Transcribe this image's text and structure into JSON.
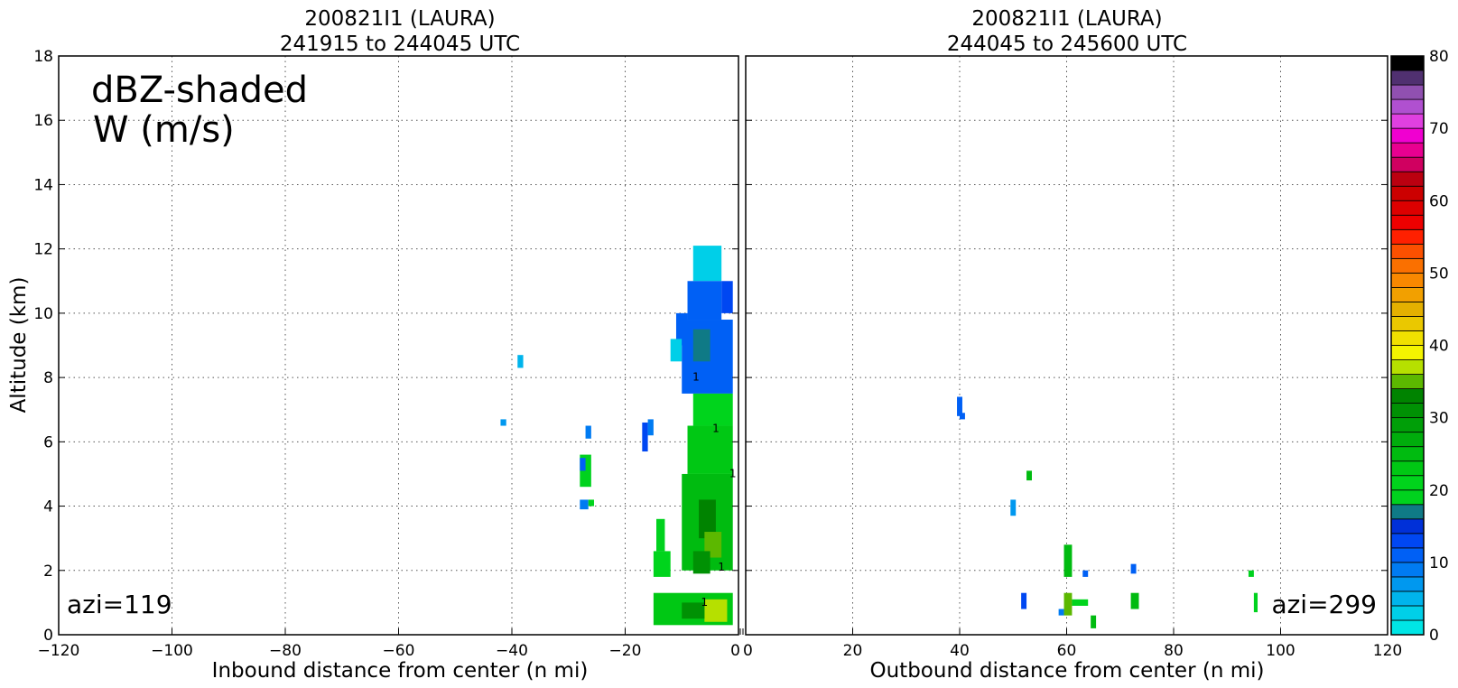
{
  "chart_data": [
    {
      "type": "heatmap",
      "panel": "left",
      "title_line1": "200821I1 (LAURA)",
      "title_line2": "241915 to 244045 UTC",
      "xlabel": "Inbound distance from center (n mi)",
      "ylabel": "Altitude (km)",
      "xlim": [
        -120,
        0
      ],
      "ylim": [
        0,
        18
      ],
      "xticks": [
        "−120",
        "−100",
        "−80",
        "−60",
        "−40",
        "−20",
        "0"
      ],
      "yticks": [
        "0",
        "2",
        "4",
        "6",
        "8",
        "10",
        "12",
        "14",
        "16",
        "18"
      ],
      "grid": true,
      "annotation_line1": "dBZ-shaded",
      "annotation_line2": "W (m/s)",
      "azimuth_label": "azi=119",
      "cells": [
        {
          "x0": -3,
          "x1": -1,
          "y0": 10,
          "y1": 11,
          "dbz": 12
        },
        {
          "x0": -8,
          "x1": -3,
          "y0": 11,
          "y1": 12.1,
          "dbz": 2
        },
        {
          "x0": -9,
          "x1": -3,
          "y0": 9.8,
          "y1": 11,
          "dbz": 10
        },
        {
          "x0": -11,
          "x1": -9,
          "y0": 9,
          "y1": 10,
          "dbz": 10
        },
        {
          "x0": -12,
          "x1": -10,
          "y0": 8.5,
          "y1": 9.2,
          "dbz": 3
        },
        {
          "x0": -10,
          "x1": -1,
          "y0": 7.5,
          "y1": 9.8,
          "dbz": 11
        },
        {
          "x0": -8,
          "x1": -5,
          "y0": 8.5,
          "y1": 9.5,
          "dbz": 17
        },
        {
          "x0": -8,
          "x1": -1,
          "y0": 6.5,
          "y1": 7.5,
          "dbz": 21
        },
        {
          "x0": -9,
          "x1": -1,
          "y0": 5,
          "y1": 6.5,
          "dbz": 23
        },
        {
          "x0": -10,
          "x1": -1,
          "y0": 2,
          "y1": 5,
          "dbz": 25
        },
        {
          "x0": -7,
          "x1": -4,
          "y0": 3,
          "y1": 4.2,
          "dbz": 33
        },
        {
          "x0": -6,
          "x1": -3,
          "y0": 2.4,
          "y1": 3.2,
          "dbz": 35
        },
        {
          "x0": -8,
          "x1": -5,
          "y0": 1.9,
          "y1": 2.6,
          "dbz": 31
        },
        {
          "x0": -15,
          "x1": -12,
          "y0": 1.8,
          "y1": 2.6,
          "dbz": 20
        },
        {
          "x0": -14.5,
          "x1": -13,
          "y0": 2.6,
          "y1": 3.6,
          "dbz": 18
        },
        {
          "x0": -15,
          "x1": -1,
          "y0": 0.3,
          "y1": 1.3,
          "dbz": 22
        },
        {
          "x0": -6,
          "x1": -2,
          "y0": 0.4,
          "y1": 1.1,
          "dbz": 36
        },
        {
          "x0": -10,
          "x1": -6,
          "y0": 0.5,
          "y1": 1.0,
          "dbz": 31
        },
        {
          "x0": -17,
          "x1": -16,
          "y0": 5.7,
          "y1": 6.6,
          "dbz": 13
        },
        {
          "x0": -16,
          "x1": -15,
          "y0": 6.2,
          "y1": 6.7,
          "dbz": 9
        },
        {
          "x0": -28,
          "x1": -26,
          "y0": 4.6,
          "y1": 5.6,
          "dbz": 19
        },
        {
          "x0": -28,
          "x1": -27,
          "y0": 5.1,
          "y1": 5.5,
          "dbz": 10
        },
        {
          "x0": -28,
          "x1": -26.5,
          "y0": 3.9,
          "y1": 4.2,
          "dbz": 9
        },
        {
          "x0": -26.5,
          "x1": -25.5,
          "y0": 4.0,
          "y1": 4.2,
          "dbz": 20
        },
        {
          "x0": -27,
          "x1": -26,
          "y0": 6.1,
          "y1": 6.5,
          "dbz": 9
        },
        {
          "x0": -39,
          "x1": -38,
          "y0": 8.3,
          "y1": 8.7,
          "dbz": 5
        },
        {
          "x0": -42,
          "x1": -41,
          "y0": 6.5,
          "y1": 6.7,
          "dbz": 7
        }
      ]
    },
    {
      "type": "heatmap",
      "panel": "right",
      "title_line1": "200821I1 (LAURA)",
      "title_line2": "244045 to 245600 UTC",
      "xlabel": "Outbound distance from center (n mi)",
      "xlim": [
        0,
        120
      ],
      "ylim": [
        0,
        18
      ],
      "xticks": [
        "0",
        "20",
        "40",
        "60",
        "80",
        "100",
        "120"
      ],
      "grid": true,
      "azimuth_label": "azi=299",
      "cells": [
        {
          "x0": 39.5,
          "x1": 40.5,
          "y0": 6.8,
          "y1": 7.4,
          "dbz": 10
        },
        {
          "x0": 40,
          "x1": 41,
          "y0": 6.7,
          "y1": 6.9,
          "dbz": 10
        },
        {
          "x0": 52.5,
          "x1": 53.5,
          "y0": 4.8,
          "y1": 5.1,
          "dbz": 24
        },
        {
          "x0": 49.5,
          "x1": 50.5,
          "y0": 3.7,
          "y1": 4.2,
          "dbz": 6
        },
        {
          "x0": 51.5,
          "x1": 52.5,
          "y0": 0.8,
          "y1": 1.3,
          "dbz": 13
        },
        {
          "x0": 58.5,
          "x1": 59.5,
          "y0": 0.6,
          "y1": 0.8,
          "dbz": 9
        },
        {
          "x0": 59.5,
          "x1": 61,
          "y0": 0.6,
          "y1": 1.3,
          "dbz": 35
        },
        {
          "x0": 61,
          "x1": 64,
          "y0": 0.9,
          "y1": 1.1,
          "dbz": 20
        },
        {
          "x0": 59.5,
          "x1": 61,
          "y0": 1.8,
          "y1": 2.8,
          "dbz": 24
        },
        {
          "x0": 63,
          "x1": 64,
          "y0": 1.8,
          "y1": 2.0,
          "dbz": 11
        },
        {
          "x0": 64.5,
          "x1": 65.5,
          "y0": 0.2,
          "y1": 0.6,
          "dbz": 24
        },
        {
          "x0": 72,
          "x1": 73.5,
          "y0": 0.8,
          "y1": 1.3,
          "dbz": 24
        },
        {
          "x0": 72,
          "x1": 73,
          "y0": 1.9,
          "y1": 2.2,
          "dbz": 10
        },
        {
          "x0": 94,
          "x1": 95,
          "y0": 1.8,
          "y1": 2.0,
          "dbz": 19
        },
        {
          "x0": 95,
          "x1": 95.7,
          "y0": 0.7,
          "y1": 1.3,
          "dbz": 19
        }
      ]
    }
  ],
  "colorbar": {
    "min": 0,
    "max": 80,
    "step": 2,
    "ticks": [
      "0",
      "10",
      "20",
      "30",
      "40",
      "50",
      "60",
      "70",
      "80"
    ],
    "colors": [
      "#00e5e5",
      "#00cfe8",
      "#00b4ec",
      "#0098ef",
      "#007bf2",
      "#0060f5",
      "#0047f2",
      "#0030d8",
      "#0f7a86",
      "#00d21e",
      "#00d41c",
      "#00c814",
      "#00bb10",
      "#00ad0c",
      "#009f08",
      "#009104",
      "#008300",
      "#5cb800",
      "#b6e000",
      "#f4f400",
      "#f0e000",
      "#eac800",
      "#e4b000",
      "#f2a000",
      "#f88800",
      "#fa7000",
      "#fc5000",
      "#ff2000",
      "#ee0000",
      "#dd0000",
      "#cc0000",
      "#bb0010",
      "#d00060",
      "#e80090",
      "#f000d0",
      "#e040e0",
      "#b050d0",
      "#9050b0",
      "#503070",
      "#000000"
    ]
  },
  "contour_labels": [
    {
      "panel": "left",
      "x": -3,
      "y": 2.0,
      "text": "1"
    },
    {
      "panel": "left",
      "x": -6,
      "y": 0.9,
      "text": "1"
    },
    {
      "panel": "left",
      "x": -1,
      "y": 4.9,
      "text": "1"
    },
    {
      "panel": "left",
      "x": -4,
      "y": 6.3,
      "text": "1"
    },
    {
      "panel": "left",
      "x": -7.5,
      "y": 7.9,
      "text": "1"
    }
  ]
}
